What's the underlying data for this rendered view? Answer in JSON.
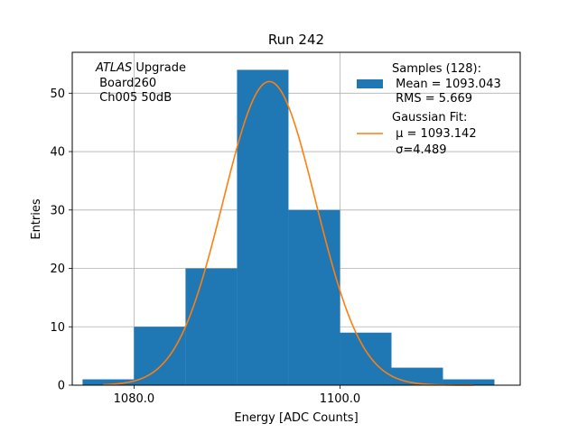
{
  "chart_data": {
    "type": "bar",
    "title": "Run 242",
    "xlabel": "Energy [ADC Counts]",
    "ylabel": "Entries",
    "xlim": [
      1074,
      1117.5
    ],
    "ylim": [
      0,
      57
    ],
    "x_ticks": [
      1080,
      1100
    ],
    "x_tick_labels": [
      "1080.0",
      "1100.0"
    ],
    "y_ticks": [
      0,
      10,
      20,
      30,
      40,
      50
    ],
    "y_tick_labels": [
      "0",
      "10",
      "20",
      "30",
      "40",
      "50"
    ],
    "grid": true,
    "annotation": {
      "line1_italic": "ATLAS",
      "line1_rest": " Upgrade",
      "line2": " Board260",
      "line3": " Ch005 50dB"
    },
    "histogram": {
      "name": "Samples (128):",
      "color": "#1f77b4",
      "bin_edges": [
        1075,
        1080,
        1085,
        1090,
        1095,
        1100,
        1105,
        1110,
        1115
      ],
      "counts": [
        1,
        10,
        20,
        54,
        30,
        9,
        3,
        1
      ]
    },
    "fit": {
      "name": "Gaussian Fit:",
      "color": "#ff7f0e",
      "mu": 1093.142,
      "sigma": 4.489,
      "amplitude": 52,
      "x_range": [
        1077,
        1113
      ]
    },
    "legend": {
      "placement": "top-right",
      "hist_label_1": "Samples (128):",
      "hist_label_2": " Mean = 1093.043",
      "hist_label_3": " RMS = 5.669",
      "fit_label_1": "Gaussian Fit:",
      "fit_label_2": " μ = 1093.142",
      "fit_label_3": " σ=4.489"
    }
  }
}
